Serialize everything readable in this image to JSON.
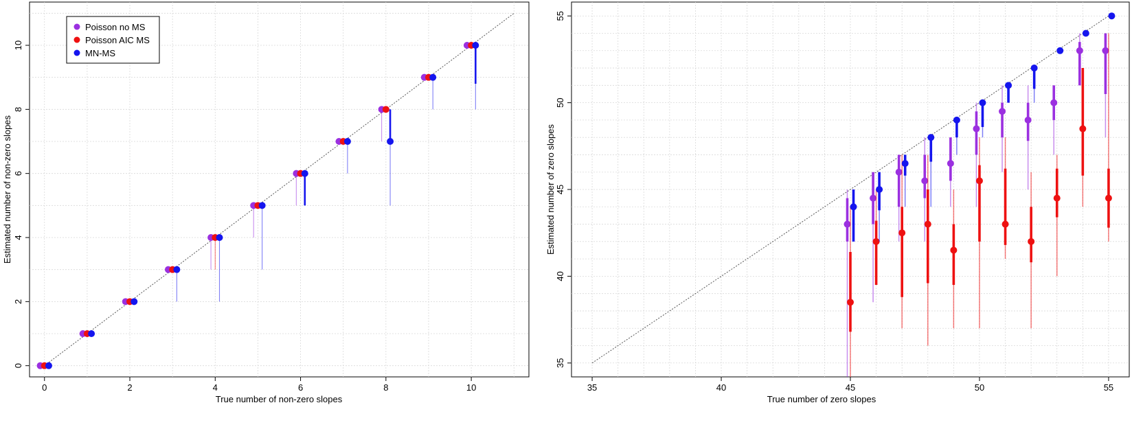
{
  "colors": {
    "poisson_no_ms": "#9b30e0",
    "poisson_aic_ms": "#ee1111",
    "mn_ms": "#1515ee",
    "diagonal": "#555555",
    "grid": "#d9d9d9"
  },
  "chart_data": [
    {
      "type": "scatter",
      "xlabel": "True number of non-zero slopes",
      "ylabel": "Estimated number of non-zero slopes",
      "xlim": [
        -0.35,
        11.35
      ],
      "ylim": [
        -0.35,
        11.35
      ],
      "xticks": [
        0,
        2,
        4,
        6,
        8,
        10
      ],
      "yticks": [
        0,
        2,
        4,
        6,
        8,
        10
      ],
      "grid": true,
      "reference_line": [
        [
          0,
          0
        ],
        [
          11,
          11
        ]
      ],
      "legend": {
        "placement": "top-left",
        "entries": [
          "Poisson no MS",
          "Poisson AIC MS",
          "MN-MS"
        ]
      },
      "series": [
        {
          "name": "Poisson no MS",
          "x": [
            0,
            1,
            2,
            3,
            4,
            5,
            6,
            7,
            8,
            9,
            10
          ],
          "y": [
            0,
            1,
            2,
            3,
            4,
            5,
            6,
            7,
            8,
            9,
            10
          ],
          "interval_outer": [
            [
              0,
              0
            ],
            [
              1,
              1
            ],
            [
              2,
              2
            ],
            [
              3,
              3
            ],
            [
              3,
              4
            ],
            [
              4,
              5
            ],
            [
              5,
              6
            ],
            [
              7,
              7
            ],
            [
              7,
              8
            ],
            [
              9,
              9
            ],
            [
              10,
              10
            ]
          ],
          "interval_inner": [
            [
              0,
              0
            ],
            [
              1,
              1
            ],
            [
              2,
              2
            ],
            [
              3,
              3
            ],
            [
              4,
              4
            ],
            [
              5,
              5
            ],
            [
              6,
              6
            ],
            [
              7,
              7
            ],
            [
              8,
              8
            ],
            [
              9,
              9
            ],
            [
              10,
              10
            ]
          ]
        },
        {
          "name": "Poisson AIC MS",
          "x": [
            0,
            1,
            2,
            3,
            4,
            5,
            6,
            7,
            8,
            9,
            10
          ],
          "y": [
            0,
            1,
            2,
            3,
            4,
            5,
            6,
            7,
            8,
            9,
            10
          ],
          "interval_outer": [
            [
              0,
              0
            ],
            [
              1,
              1
            ],
            [
              2,
              2
            ],
            [
              3,
              3
            ],
            [
              3,
              4
            ],
            [
              5,
              5
            ],
            [
              6,
              6
            ],
            [
              7,
              7
            ],
            [
              8,
              8
            ],
            [
              9,
              9
            ],
            [
              10,
              10
            ]
          ],
          "interval_inner": [
            [
              0,
              0
            ],
            [
              1,
              1
            ],
            [
              2,
              2
            ],
            [
              3,
              3
            ],
            [
              4,
              4
            ],
            [
              5,
              5
            ],
            [
              6,
              6
            ],
            [
              7,
              7
            ],
            [
              8,
              8
            ],
            [
              9,
              9
            ],
            [
              10,
              10
            ]
          ]
        },
        {
          "name": "MN-MS",
          "x": [
            0,
            1,
            2,
            3,
            4,
            5,
            6,
            7,
            8,
            9,
            10
          ],
          "y": [
            0,
            1,
            2,
            3,
            4,
            5,
            6,
            7,
            7,
            9,
            10
          ],
          "interval_outer": [
            [
              0,
              0
            ],
            [
              1,
              1
            ],
            [
              2,
              2
            ],
            [
              2,
              3
            ],
            [
              2,
              4
            ],
            [
              3,
              5
            ],
            [
              5,
              6
            ],
            [
              6,
              7
            ],
            [
              5,
              8
            ],
            [
              8,
              9
            ],
            [
              8,
              10
            ]
          ],
          "interval_inner": [
            [
              0,
              0
            ],
            [
              1,
              1
            ],
            [
              2,
              2
            ],
            [
              3,
              3
            ],
            [
              4,
              4
            ],
            [
              5,
              5
            ],
            [
              5,
              6
            ],
            [
              7,
              7
            ],
            [
              7,
              8
            ],
            [
              9,
              9
            ],
            [
              8.8,
              10
            ]
          ]
        }
      ]
    },
    {
      "type": "scatter",
      "xlabel": "True number of zero slopes",
      "ylabel": "Estimated number of zero slopes",
      "xlim": [
        34.2,
        55.8
      ],
      "ylim": [
        34.2,
        55.8
      ],
      "xticks": [
        35,
        40,
        45,
        50,
        55
      ],
      "yticks": [
        35,
        40,
        45,
        50,
        55
      ],
      "grid": true,
      "reference_line": [
        [
          35,
          35
        ],
        [
          55,
          55
        ]
      ],
      "series": [
        {
          "name": "Poisson no MS",
          "x": [
            45,
            46,
            47,
            48,
            49,
            50,
            51,
            52,
            53,
            54,
            55
          ],
          "y": [
            43,
            44.5,
            46,
            45.5,
            46.5,
            48.5,
            49.5,
            49,
            50,
            53,
            53
          ],
          "interval_outer": [
            [
              34.2,
              45
            ],
            [
              38.5,
              46
            ],
            [
              42,
              47
            ],
            [
              42,
              48
            ],
            [
              44,
              48
            ],
            [
              44,
              50
            ],
            [
              46,
              51
            ],
            [
              45,
              51
            ],
            [
              47,
              51
            ],
            [
              51,
              54
            ],
            [
              48,
              54
            ]
          ],
          "interval_inner": [
            [
              42,
              44.5
            ],
            [
              43,
              46
            ],
            [
              44,
              47
            ],
            [
              44.5,
              47
            ],
            [
              45.5,
              48
            ],
            [
              47,
              49.5
            ],
            [
              48,
              50
            ],
            [
              47.8,
              50
            ],
            [
              49,
              51
            ],
            [
              51,
              53.5
            ],
            [
              50.5,
              54
            ]
          ]
        },
        {
          "name": "Poisson AIC MS",
          "x": [
            45,
            46,
            47,
            48,
            49,
            50,
            51,
            52,
            53,
            54,
            55
          ],
          "y": [
            38.5,
            42,
            42.5,
            43,
            41.5,
            45.5,
            43,
            42,
            44.5,
            48.5,
            44.5
          ],
          "interval_outer": [
            [
              34.2,
              44
            ],
            [
              40,
              45
            ],
            [
              37,
              47
            ],
            [
              36,
              47
            ],
            [
              37,
              45
            ],
            [
              37,
              48
            ],
            [
              41,
              48
            ],
            [
              37,
              46
            ],
            [
              40,
              47
            ],
            [
              44,
              50
            ],
            [
              42,
              54
            ]
          ],
          "interval_inner": [
            [
              36.8,
              41.4
            ],
            [
              39.5,
              43.2
            ],
            [
              38.8,
              44
            ],
            [
              39.6,
              45
            ],
            [
              39.5,
              43
            ],
            [
              42,
              46.4
            ],
            [
              41.8,
              46.2
            ],
            [
              40.8,
              44
            ],
            [
              43.4,
              46.2
            ],
            [
              45.8,
              52
            ],
            [
              42.8,
              46.2
            ]
          ]
        },
        {
          "name": "MN-MS",
          "x": [
            45,
            46,
            47,
            48,
            49,
            50,
            51,
            52,
            53,
            54,
            55
          ],
          "y": [
            44,
            45,
            46.5,
            48,
            49,
            50,
            51,
            52,
            53,
            54,
            55
          ],
          "interval_outer": [
            [
              42,
              45
            ],
            [
              42,
              46
            ],
            [
              44,
              47
            ],
            [
              44,
              48
            ],
            [
              47,
              49
            ],
            [
              48,
              50
            ],
            [
              50,
              51
            ],
            [
              50,
              52
            ],
            [
              53,
              53
            ],
            [
              54,
              54
            ],
            [
              55,
              55
            ]
          ],
          "interval_inner": [
            [
              42,
              45
            ],
            [
              43.8,
              46
            ],
            [
              45.8,
              47
            ],
            [
              46.6,
              48
            ],
            [
              48,
              49
            ],
            [
              48.6,
              50
            ],
            [
              50,
              51
            ],
            [
              50.8,
              52
            ],
            [
              53,
              53
            ],
            [
              54,
              54
            ],
            [
              55,
              55
            ]
          ]
        }
      ]
    }
  ]
}
